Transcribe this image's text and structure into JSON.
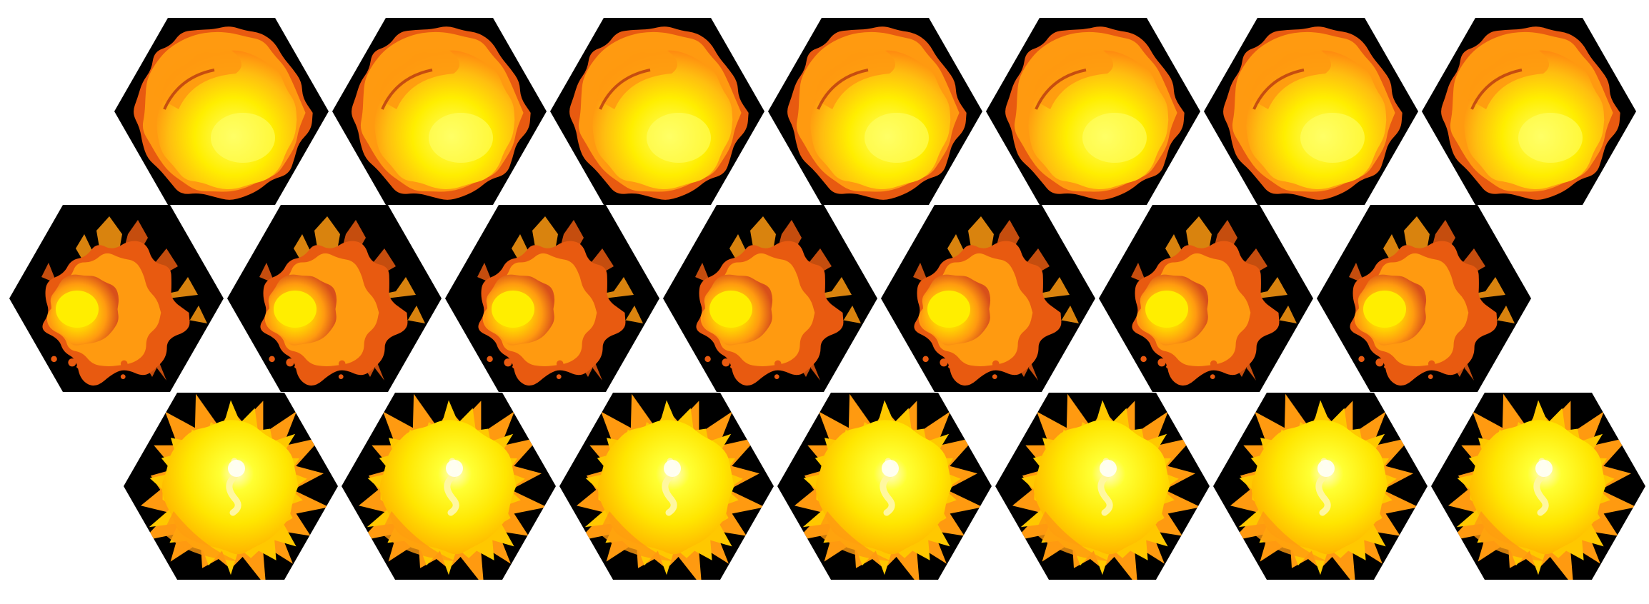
{
  "sprite_sheet": {
    "background_color": "#ffffff",
    "tile_color": "#000000",
    "palette": {
      "flame_yellow": "#ffee00",
      "flame_core": "#fff7a0",
      "flame_orange": "#ff9a10",
      "flame_deep": "#e85a10",
      "flame_dark": "#b83a10"
    },
    "rows": [
      {
        "name": "fireball",
        "effect": "fireball",
        "frame_count": 7
      },
      {
        "name": "flame-burst",
        "effect": "burst",
        "frame_count": 7
      },
      {
        "name": "explosion",
        "effect": "explosion",
        "frame_count": 7
      }
    ]
  }
}
